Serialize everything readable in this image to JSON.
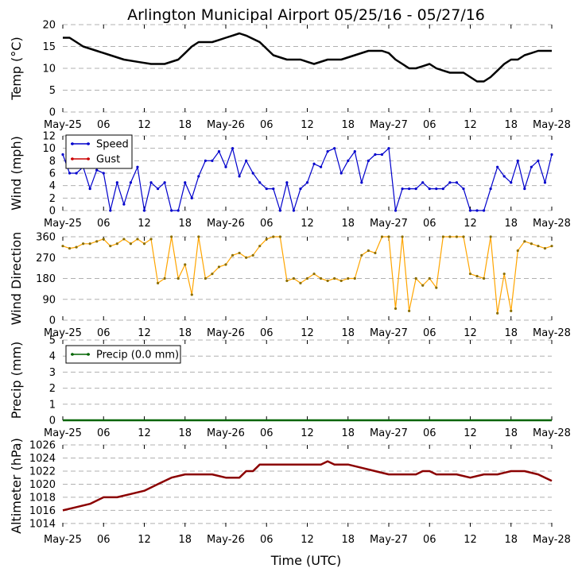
{
  "chart_data": {
    "title": "Arlington Municipal Airport 05/25/16 - 05/27/16",
    "xlabel": "Time (UTC)",
    "x_unit": "hours since 2016-05-25 00:00 UTC",
    "xlim": [
      0,
      72
    ],
    "x_ticks": [
      {
        "x": 0,
        "label": "May-25"
      },
      {
        "x": 6,
        "label": "06"
      },
      {
        "x": 12,
        "label": "12"
      },
      {
        "x": 18,
        "label": "18"
      },
      {
        "x": 24,
        "label": "May-26"
      },
      {
        "x": 30,
        "label": "06"
      },
      {
        "x": 36,
        "label": "12"
      },
      {
        "x": 42,
        "label": "18"
      },
      {
        "x": 48,
        "label": "May-27"
      },
      {
        "x": 54,
        "label": "06"
      },
      {
        "x": 60,
        "label": "12"
      },
      {
        "x": 66,
        "label": "18"
      },
      {
        "x": 72,
        "label": "May-28"
      }
    ],
    "panels": [
      {
        "id": "temp",
        "type": "line",
        "ylabel": "Temp (°C)",
        "ylim": [
          0,
          20
        ],
        "yticks": [
          0,
          5,
          10,
          15,
          20
        ],
        "series": [
          {
            "name": "Temp",
            "color": "#000000",
            "x": [
              0,
              1,
              2,
              3,
              5,
              7,
              9,
              11,
              13,
              15,
              17,
              18,
              19,
              20,
              21,
              22,
              23,
              24,
              25,
              26,
              27,
              29,
              31,
              33,
              35,
              36,
              37,
              39,
              41,
              43,
              45,
              46,
              47,
              48,
              49,
              50,
              51,
              52,
              53,
              54,
              55,
              56,
              57,
              58,
              59,
              60,
              61,
              62,
              63,
              64,
              65,
              66,
              67,
              68,
              69,
              70,
              71,
              72
            ],
            "y": [
              17,
              17,
              16,
              15,
              14,
              13,
              12,
              11.5,
              11,
              11,
              12,
              13.5,
              15,
              16,
              16,
              16,
              16.5,
              17,
              17.5,
              18,
              17.5,
              16,
              13,
              12,
              12,
              11.5,
              11,
              12,
              12,
              13,
              14,
              14,
              14,
              13.5,
              12,
              11,
              10,
              10,
              10.5,
              11,
              10,
              9.5,
              9,
              9,
              9,
              8,
              7,
              7,
              8,
              9.5,
              11,
              12,
              12,
              13,
              13.5,
              14,
              14,
              14
            ]
          }
        ]
      },
      {
        "id": "wind",
        "type": "line",
        "ylabel": "Wind (mph)",
        "ylim": [
          0,
          12
        ],
        "yticks": [
          0,
          2,
          4,
          6,
          8,
          10,
          12
        ],
        "legend": [
          "Speed",
          "Gust"
        ],
        "series": [
          {
            "name": "Speed",
            "color": "#0000cc",
            "x": [
              0,
              1,
              2,
              3,
              4,
              5,
              6,
              7,
              8,
              9,
              10,
              11,
              12,
              13,
              14,
              15,
              16,
              17,
              18,
              19,
              20,
              21,
              22,
              23,
              24,
              25,
              26,
              27,
              28,
              29,
              30,
              31,
              32,
              33,
              34,
              35,
              36,
              37,
              38,
              39,
              40,
              41,
              42,
              43,
              44,
              45,
              46,
              47,
              48,
              49,
              50,
              51,
              52,
              53,
              54,
              55,
              56,
              57,
              58,
              59,
              60,
              61,
              62,
              63,
              64,
              65,
              66,
              67,
              68,
              69,
              70,
              71,
              72
            ],
            "y": [
              9,
              6,
              6,
              7,
              3.5,
              6.5,
              6,
              0,
              4.5,
              1,
              4.5,
              7,
              0,
              4.5,
              3.5,
              4.5,
              0,
              0,
              4.5,
              2,
              5.5,
              8,
              8,
              9.5,
              7,
              10,
              5.5,
              8,
              6,
              4.5,
              3.5,
              3.5,
              0,
              4.5,
              0,
              3.5,
              4.5,
              7.5,
              7,
              9.5,
              10,
              6,
              8,
              9.5,
              4.5,
              8,
              9,
              9,
              10,
              0,
              3.5,
              3.5,
              3.5,
              4.5,
              3.5,
              3.5,
              3.5,
              4.5,
              4.5,
              3.5,
              0,
              0,
              0,
              3.5,
              7,
              5.5,
              4.5,
              8,
              3.5,
              7,
              8,
              4.5,
              9
            ]
          },
          {
            "name": "Gust",
            "color": "#cc0000",
            "x": [],
            "y": []
          }
        ]
      },
      {
        "id": "direction",
        "type": "line",
        "ylabel": "Wind Direction",
        "ylim": [
          0,
          360
        ],
        "yticks": [
          0,
          90,
          180,
          270,
          360
        ],
        "series": [
          {
            "name": "Wind Direction",
            "color": "#ffa500",
            "x": [
              0,
              1,
              2,
              3,
              4,
              5,
              6,
              7,
              8,
              9,
              10,
              11,
              12,
              13,
              14,
              15,
              16,
              17,
              18,
              19,
              20,
              21,
              22,
              23,
              24,
              25,
              26,
              27,
              28,
              29,
              30,
              31,
              32,
              33,
              34,
              35,
              36,
              37,
              38,
              39,
              40,
              41,
              42,
              43,
              44,
              45,
              46,
              47,
              48,
              49,
              50,
              51,
              52,
              53,
              54,
              55,
              56,
              57,
              58,
              59,
              60,
              61,
              62,
              63,
              64,
              65,
              66,
              67,
              68,
              69,
              70,
              71,
              72
            ],
            "y": [
              320,
              310,
              315,
              330,
              330,
              340,
              350,
              320,
              330,
              350,
              330,
              350,
              330,
              350,
              160,
              180,
              360,
              180,
              240,
              110,
              360,
              180,
              200,
              230,
              240,
              280,
              290,
              270,
              280,
              320,
              350,
              360,
              360,
              170,
              180,
              160,
              180,
              200,
              180,
              170,
              180,
              170,
              180,
              180,
              280,
              300,
              290,
              360,
              360,
              50,
              360,
              40,
              180,
              150,
              180,
              140,
              360,
              360,
              360,
              360,
              200,
              190,
              180,
              360,
              30,
              200,
              40,
              300,
              340,
              330,
              320,
              310,
              320
            ]
          }
        ]
      },
      {
        "id": "precip",
        "type": "line",
        "ylabel": "Precip (mm)",
        "ylim": [
          0,
          5
        ],
        "yticks": [
          0,
          1,
          2,
          3,
          4,
          5
        ],
        "legend": [
          "Precip (0.0 mm)"
        ],
        "series": [
          {
            "name": "Precip (0.0 mm)",
            "color": "#006400",
            "x": [
              0,
              72
            ],
            "y": [
              0,
              0
            ]
          }
        ]
      },
      {
        "id": "altimeter",
        "type": "line",
        "ylabel": "Altimeter (hPa)",
        "ylim": [
          1013.5,
          1026
        ],
        "yticks": [
          1014,
          1016,
          1018,
          1020,
          1022,
          1024,
          1026
        ],
        "series": [
          {
            "name": "Altimeter",
            "color": "#8b0000",
            "x": [
              0,
              2,
              4,
              6,
              8,
              10,
              12,
              14,
              16,
              18,
              20,
              22,
              24,
              25,
              26,
              27,
              28,
              29,
              30,
              32,
              34,
              36,
              38,
              39,
              40,
              42,
              44,
              46,
              48,
              50,
              52,
              53,
              54,
              55,
              56,
              58,
              60,
              62,
              64,
              66,
              67,
              68,
              70,
              71,
              72
            ],
            "y": [
              1016,
              1016.5,
              1017,
              1018,
              1018,
              1018.5,
              1019,
              1020,
              1021,
              1021.5,
              1021.5,
              1021.5,
              1021,
              1021,
              1021,
              1022,
              1022,
              1023,
              1023,
              1023,
              1023,
              1023,
              1023,
              1023.5,
              1023,
              1023,
              1022.5,
              1022,
              1021.5,
              1021.5,
              1021.5,
              1022,
              1022,
              1021.5,
              1021.5,
              1021.5,
              1021,
              1021.5,
              1021.5,
              1022,
              1022,
              1022,
              1021.5,
              1021,
              1020.5
            ]
          }
        ]
      }
    ]
  }
}
